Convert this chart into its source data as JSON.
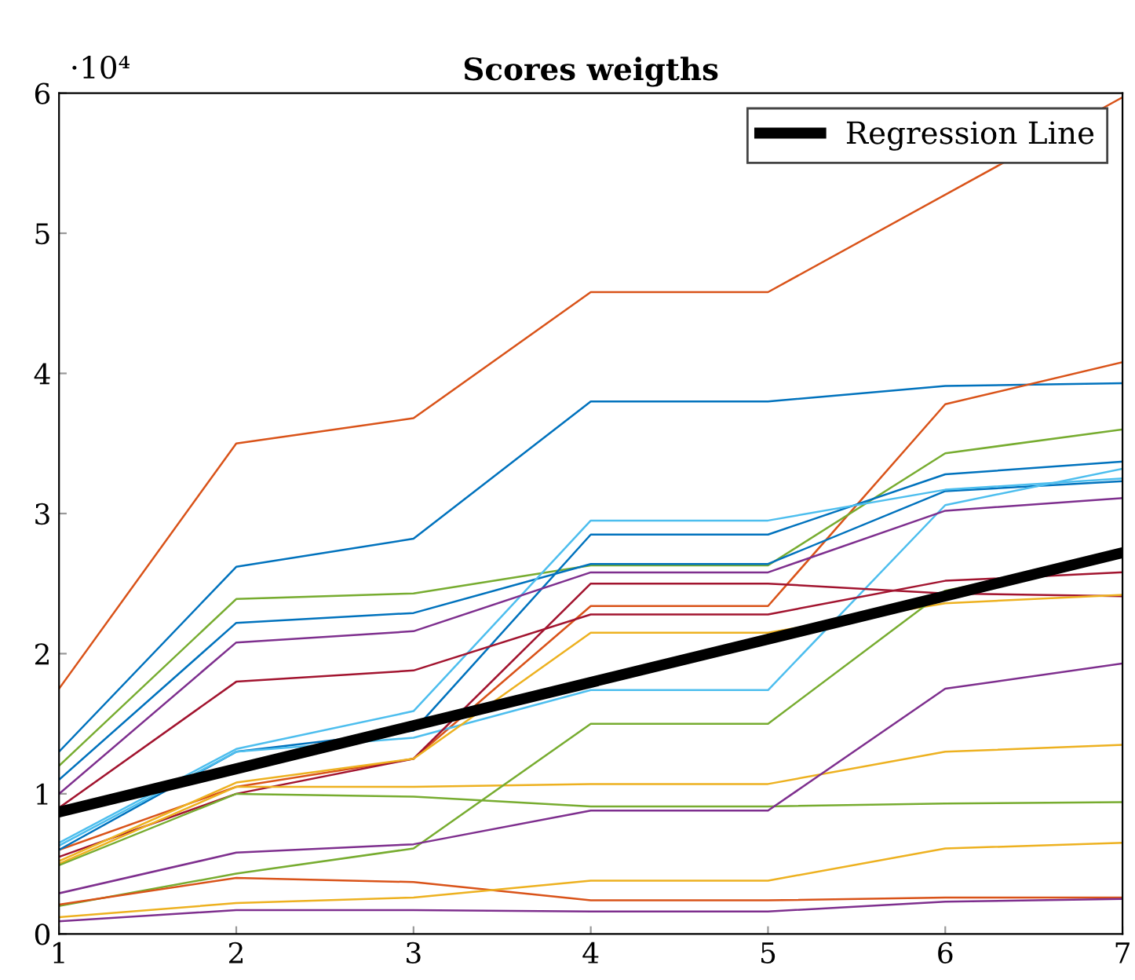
{
  "chart_data": {
    "type": "line",
    "title": "Scores weigths",
    "x": [
      1,
      2,
      3,
      4,
      5,
      6,
      7
    ],
    "xlim": [
      1,
      7
    ],
    "xticks": [
      1,
      2,
      3,
      4,
      5,
      6,
      7
    ],
    "ylim": [
      0,
      6
    ],
    "yticks": [
      0,
      1,
      2,
      3,
      4,
      5,
      6
    ],
    "annotations": [
      "·10⁴"
    ],
    "grid": false,
    "legend": "top right",
    "marker": "none",
    "line_style": "solid",
    "series": [
      {
        "color": "#d95319",
        "values": [
          1.75,
          3.5,
          3.68,
          4.58,
          4.58,
          null,
          5.97
        ]
      },
      {
        "color": "#0072bd",
        "values": [
          1.3,
          2.62,
          2.82,
          3.8,
          3.8,
          3.91,
          3.93
        ]
      },
      {
        "color": "#d95319",
        "values": [
          0.6,
          1.05,
          1.25,
          2.34,
          2.34,
          3.78,
          4.08
        ]
      },
      {
        "color": "#77ac30",
        "values": [
          1.2,
          2.39,
          2.43,
          2.63,
          2.63,
          3.43,
          3.6
        ]
      },
      {
        "color": "#0072bd",
        "values": [
          1.1,
          2.22,
          2.29,
          2.64,
          2.64,
          3.16,
          3.23
        ]
      },
      {
        "color": "#0072bd",
        "values": [
          0.6,
          1.3,
          1.45,
          2.85,
          2.85,
          3.28,
          3.37
        ]
      },
      {
        "color": "#4dbeee",
        "values": [
          0.65,
          1.32,
          1.59,
          2.95,
          2.95,
          3.17,
          3.25
        ]
      },
      {
        "color": "#4dbeee",
        "values": [
          0.63,
          1.3,
          1.4,
          1.74,
          1.74,
          3.06,
          3.32
        ]
      },
      {
        "color": "#7e2f8e",
        "values": [
          1.0,
          2.08,
          2.16,
          2.58,
          2.58,
          3.02,
          3.11
        ]
      },
      {
        "color": "#a2142f",
        "values": [
          0.9,
          1.8,
          1.88,
          2.28,
          2.28,
          2.52,
          2.58
        ]
      },
      {
        "color": "#a2142f",
        "values": [
          0.55,
          1.0,
          1.25,
          2.5,
          2.5,
          2.43,
          2.41
        ]
      },
      {
        "color": "#edb120",
        "values": [
          0.52,
          1.08,
          1.25,
          2.15,
          2.15,
          2.36,
          2.42
        ]
      },
      {
        "color": "#edb120",
        "values": [
          0.5,
          1.05,
          1.05,
          1.07,
          1.07,
          1.3,
          1.35
        ]
      },
      {
        "color": "#77ac30",
        "values": [
          0.49,
          1.0,
          0.98,
          0.91,
          0.91,
          0.93,
          0.94
        ]
      },
      {
        "color": "#77ac30",
        "values": [
          0.2,
          0.43,
          0.61,
          1.5,
          1.5,
          2.45,
          2.7
        ]
      },
      {
        "color": "#7e2f8e",
        "values": [
          0.29,
          0.58,
          0.64,
          0.88,
          0.88,
          1.75,
          1.93
        ]
      },
      {
        "color": "#d95319",
        "values": [
          0.21,
          0.4,
          0.37,
          0.24,
          0.24,
          0.26,
          0.26
        ]
      },
      {
        "color": "#edb120",
        "values": [
          0.12,
          0.22,
          0.26,
          0.38,
          0.38,
          0.61,
          0.65
        ]
      },
      {
        "color": "#7e2f8e",
        "values": [
          0.09,
          0.17,
          0.17,
          0.16,
          0.16,
          0.23,
          0.25
        ]
      },
      {
        "name": "Regression Line",
        "color": "#000000",
        "x": [
          1,
          7
        ],
        "values": [
          0.87,
          2.72
        ]
      }
    ]
  }
}
